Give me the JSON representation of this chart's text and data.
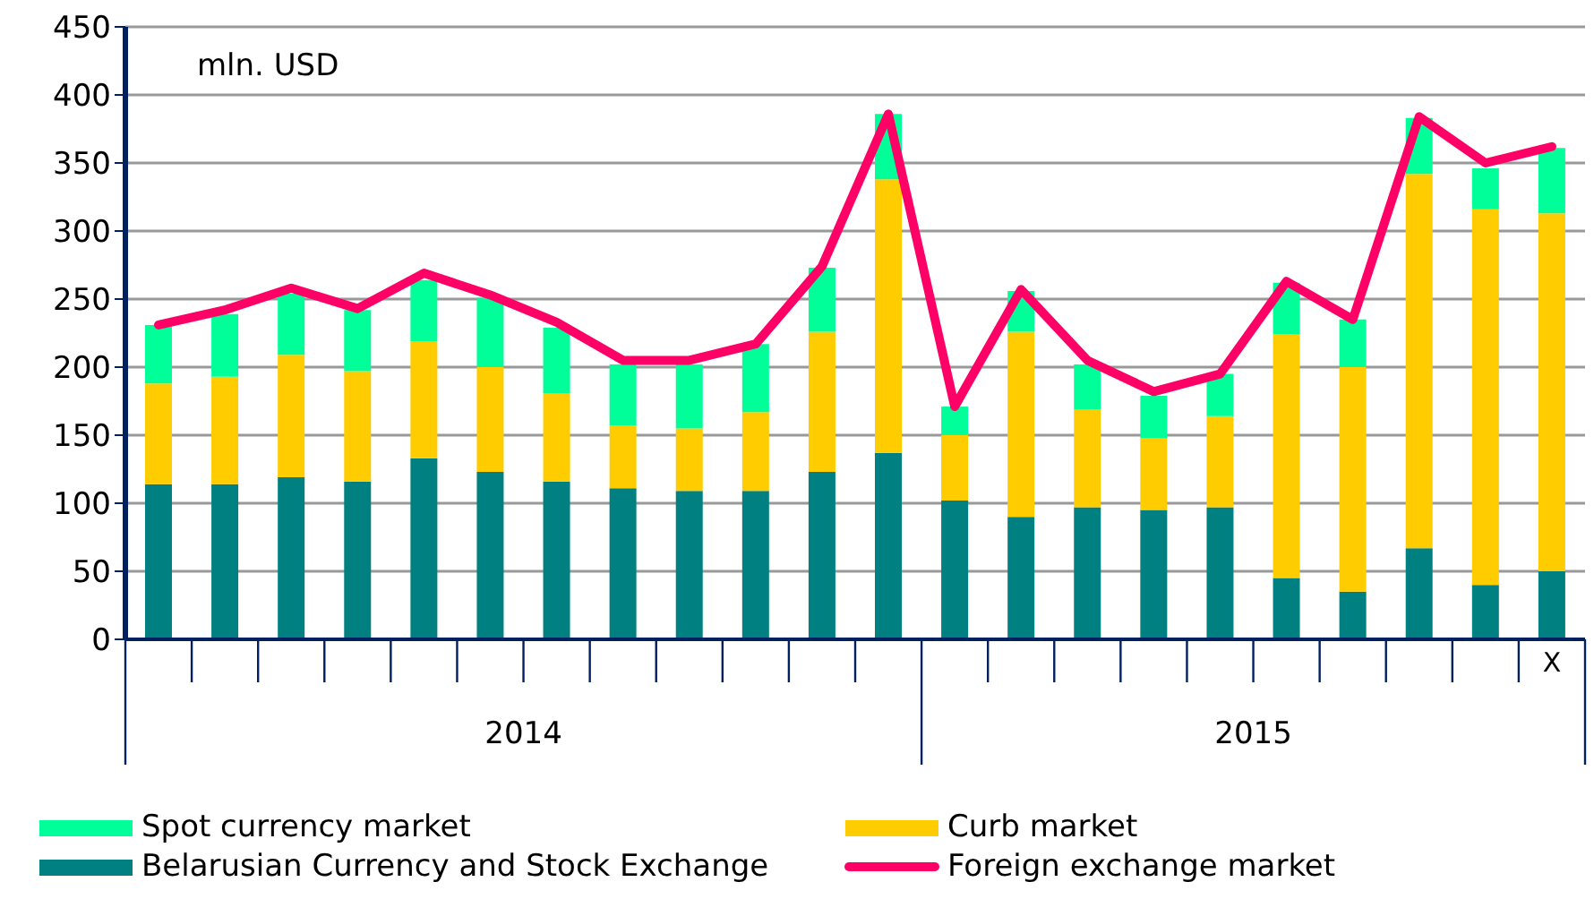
{
  "chart_data": {
    "type": "bar",
    "stacked": true,
    "ylabel": "mln. USD",
    "categories": [
      null,
      null,
      null,
      null,
      null,
      null,
      null,
      null,
      null,
      null,
      null,
      null,
      null,
      null,
      null,
      null,
      null,
      null,
      null,
      null,
      null,
      "X"
    ],
    "series": [
      {
        "name": "Belarusian Currency and Stock Exchange",
        "color": "#008080",
        "values": [
          114,
          114,
          119,
          116,
          133,
          123,
          116,
          111,
          109,
          109,
          123,
          137,
          102,
          90,
          97,
          95,
          97,
          45,
          35,
          67,
          40,
          50
        ]
      },
      {
        "name": "Curb market",
        "color": "#ffcc00",
        "values": [
          74,
          79,
          90,
          81,
          86,
          77,
          65,
          46,
          46,
          58,
          103,
          201,
          48,
          136,
          72,
          53,
          67,
          179,
          165,
          275,
          276,
          263
        ]
      },
      {
        "name": "Spot currency market",
        "color": "#00ff99",
        "values": [
          43,
          46,
          45,
          45,
          45,
          51,
          48,
          45,
          47,
          50,
          47,
          48,
          21,
          30,
          33,
          31,
          31,
          38,
          35,
          41,
          30,
          48
        ]
      },
      {
        "name": "Foreign exchange market",
        "type": "line",
        "color": "#ff0066",
        "values": [
          231,
          242,
          258,
          243,
          269,
          253,
          233,
          205,
          205,
          217,
          274,
          386,
          171,
          257,
          205,
          182,
          195,
          263,
          235,
          384,
          350,
          362
        ]
      }
    ],
    "annotations": [
      "2014",
      "2015"
    ],
    "ylim": [
      0,
      450
    ],
    "yticks": [
      0,
      50,
      100,
      150,
      200,
      250,
      300,
      350,
      400,
      450
    ],
    "grid": "y",
    "legend": "bottom",
    "line_style": "solid",
    "marker": "none"
  }
}
